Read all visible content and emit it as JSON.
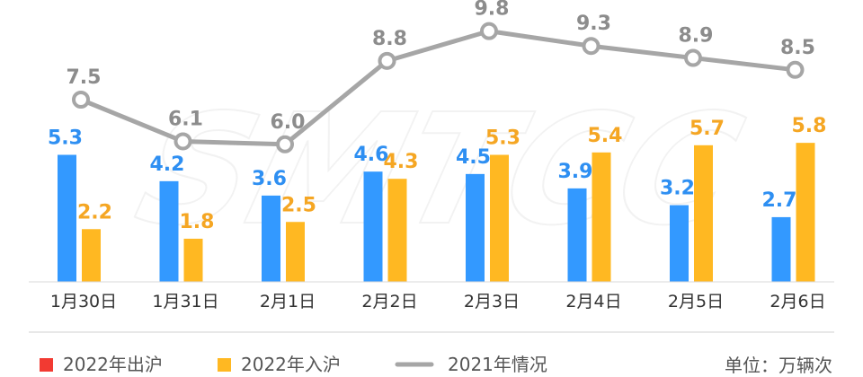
{
  "chart_data": {
    "type": "bar",
    "categories": [
      "1月30日",
      "1月31日",
      "2月1日",
      "2月2日",
      "2月3日",
      "2月4日",
      "2月5日",
      "2月6日"
    ],
    "series": [
      {
        "name": "2022年出沪",
        "type": "bar",
        "legend_color": "#F23A32",
        "bar_color": "#3399FF",
        "label_color": "#2E8FF2",
        "values": [
          5.3,
          4.2,
          3.6,
          4.6,
          4.5,
          3.9,
          3.2,
          2.7
        ]
      },
      {
        "name": "2022年入沪",
        "type": "bar",
        "legend_color": "#FFB822",
        "bar_color": "#FFB822",
        "label_color": "#F5A623",
        "values": [
          2.2,
          1.8,
          2.5,
          4.3,
          5.3,
          5.4,
          5.7,
          5.8
        ]
      },
      {
        "name": "2021年情况",
        "type": "line",
        "legend_color": "#A6A6A6",
        "line_color": "#A6A6A6",
        "label_color": "#8C8C8C",
        "values": [
          7.5,
          6.1,
          6.0,
          8.8,
          9.8,
          9.3,
          8.9,
          8.5
        ]
      }
    ],
    "unit_label": "单位：万辆次",
    "watermark": "SMTCC",
    "grid": false,
    "legend_position": "bottom-left"
  }
}
